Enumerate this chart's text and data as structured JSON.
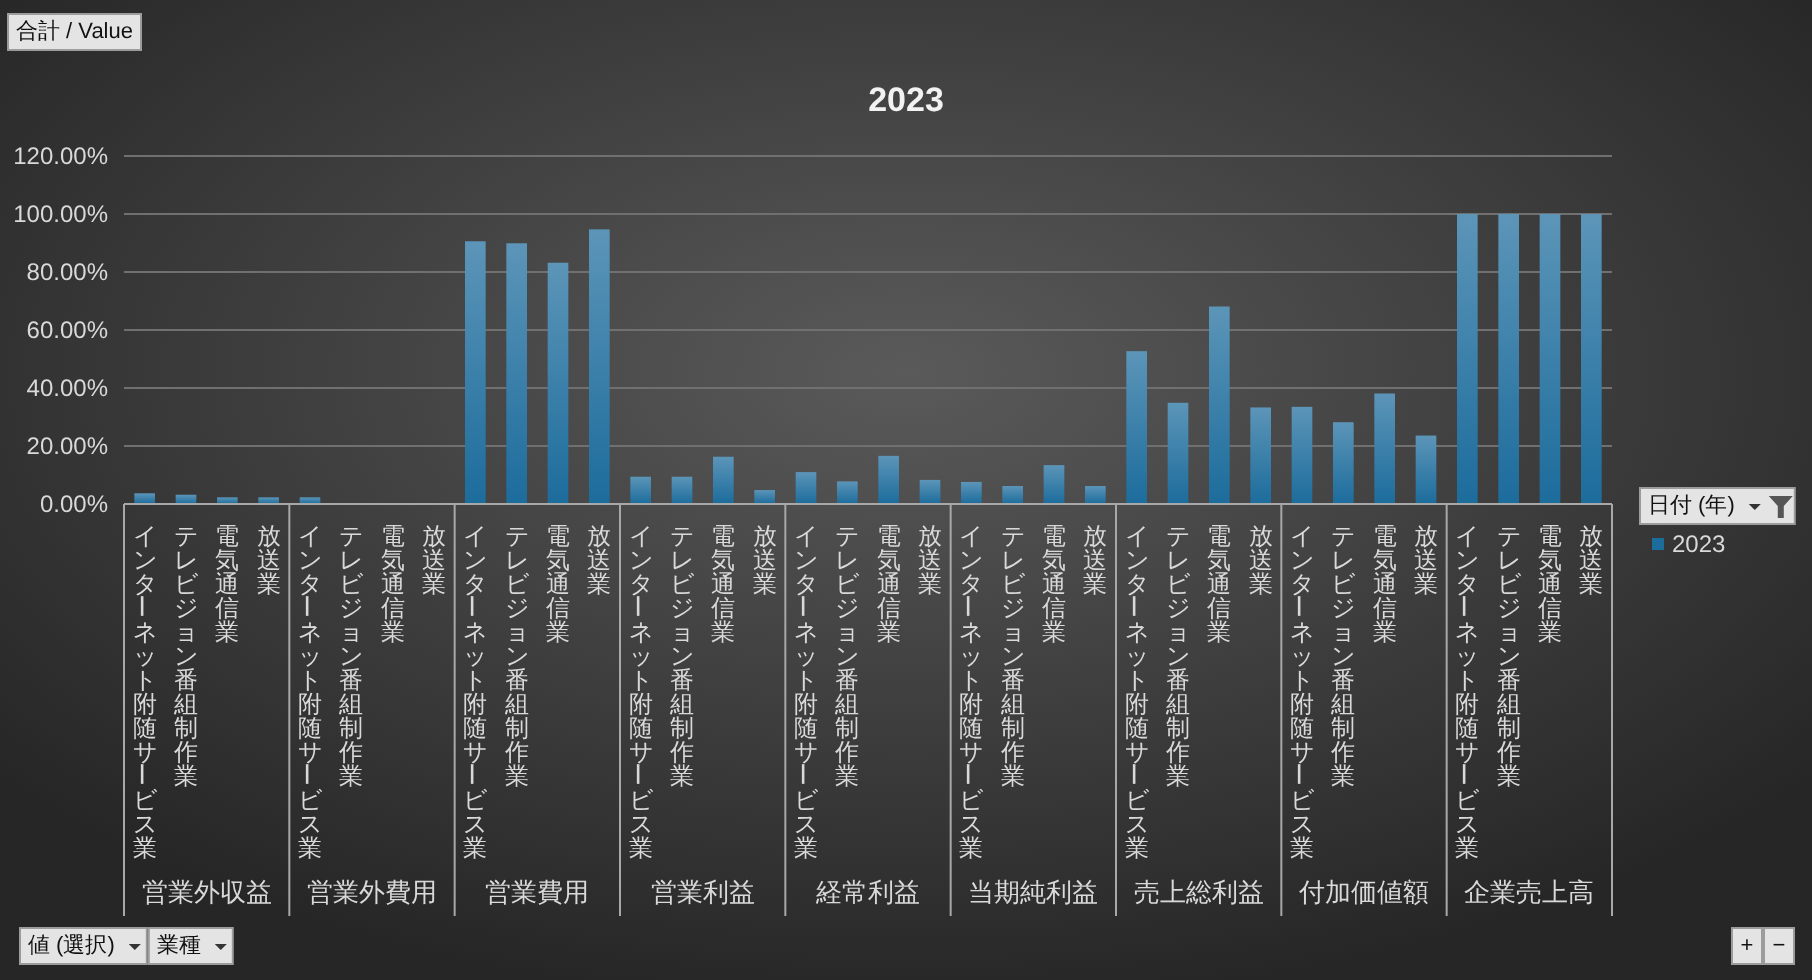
{
  "chart_data": {
    "type": "bar",
    "title": "2023",
    "ylabel": "合計 / Value",
    "legend_title": "日付 (年)",
    "categories": [
      "インターネット附随サービス業",
      "テレビジョン番組制作業",
      "電気通信業",
      "放送業",
      "インターネット附随サービス業",
      "テレビジョン番組制作業",
      "電気通信業",
      "放送業",
      "インターネット附随サービス業",
      "テレビジョン番組制作業",
      "電気通信業",
      "放送業",
      "インターネット附随サービス業",
      "テレビジョン番組制作業",
      "電気通信業",
      "放送業",
      "インターネット附随サービス業",
      "テレビジョン番組制作業",
      "電気通信業",
      "放送業",
      "インターネット附随サービス業",
      "テレビジョン番組制作業",
      "電気通信業",
      "放送業",
      "インターネット附随サービス業",
      "テレビジョン番組制作業",
      "電気通信業",
      "放送業",
      "インターネット附随サービス業",
      "テレビジョン番組制作業",
      "電気通信業",
      "放送業",
      "インターネット附随サービス業",
      "テレビジョン番組制作業",
      "電気通信業",
      "放送業"
    ],
    "series": [
      {
        "name": "2023",
        "color": "#1c6c9c",
        "values": [
          3.7,
          3.2,
          2.3,
          2.3,
          2.3,
          null,
          null,
          null,
          90.6,
          89.9,
          83.2,
          94.7,
          9.4,
          9.4,
          16.3,
          4.8,
          11.0,
          7.8,
          16.6,
          8.3,
          7.6,
          6.2,
          13.4,
          6.2,
          52.7,
          34.9,
          68.1,
          33.3,
          33.5,
          28.2,
          38.1,
          23.6,
          100,
          100,
          100,
          100
        ]
      }
    ],
    "ylim": [
      0,
      120
    ],
    "yticks": [
      {
        "value": 0,
        "label": "0.00%"
      },
      {
        "value": 20,
        "label": "20.00%"
      },
      {
        "value": 40,
        "label": "40.00%"
      },
      {
        "value": 60,
        "label": "60.00%"
      },
      {
        "value": 80,
        "label": "80.00%"
      },
      {
        "value": 100,
        "label": "100.00%"
      },
      {
        "value": 120,
        "label": "120.00%"
      }
    ],
    "grid": "y",
    "legend": "right",
    "annotations": [
      "営業外収益",
      "営業外費用",
      "営業費用",
      "営業利益",
      "経常利益",
      "当期純利益",
      "売上総利益",
      "付加価値額",
      "企業売上高",
      "値 (選択)",
      "業種",
      "+",
      "−"
    ]
  }
}
